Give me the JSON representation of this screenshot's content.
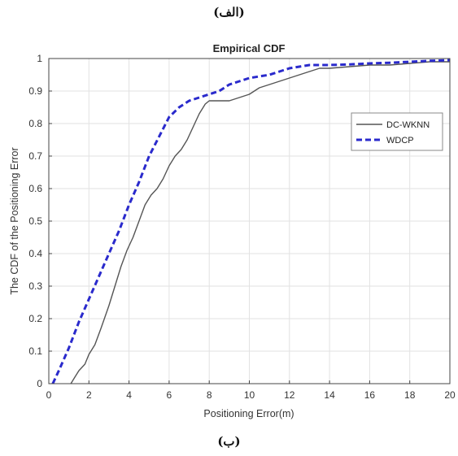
{
  "captions": {
    "top": "(الف)",
    "bottom": "(ب)"
  },
  "chart_data": {
    "type": "line",
    "title": "Empirical CDF",
    "xlabel": "Positioning Error(m)",
    "ylabel": "The CDF of the Positioning Error",
    "xlim": [
      0,
      20
    ],
    "ylim": [
      0,
      1
    ],
    "xticks": [
      0,
      2,
      4,
      6,
      8,
      10,
      12,
      14,
      16,
      18,
      20
    ],
    "yticks": [
      0,
      0.1,
      0.2,
      0.3,
      0.4,
      0.5,
      0.6,
      0.7,
      0.8,
      0.9,
      1
    ],
    "grid": true,
    "legend_position": "top-right",
    "series": [
      {
        "name": "DC-WKNN",
        "color": "#555555",
        "style": "solid",
        "x": [
          1.1,
          1.3,
          1.5,
          1.8,
          2.0,
          2.3,
          2.6,
          3.0,
          3.3,
          3.6,
          3.9,
          4.2,
          4.5,
          4.8,
          5.1,
          5.4,
          5.7,
          6.0,
          6.3,
          6.6,
          6.9,
          7.2,
          7.5,
          7.8,
          8.0,
          8.5,
          9.0,
          9.5,
          10.0,
          10.5,
          11.0,
          11.5,
          12.0,
          12.5,
          13.0,
          13.5,
          14.0,
          15.0,
          16.0,
          17.0,
          18.0,
          19.0,
          20.0
        ],
        "y": [
          0.0,
          0.02,
          0.04,
          0.06,
          0.09,
          0.12,
          0.17,
          0.24,
          0.3,
          0.36,
          0.41,
          0.45,
          0.5,
          0.55,
          0.58,
          0.6,
          0.63,
          0.67,
          0.7,
          0.72,
          0.75,
          0.79,
          0.83,
          0.86,
          0.87,
          0.87,
          0.87,
          0.88,
          0.89,
          0.91,
          0.92,
          0.93,
          0.94,
          0.95,
          0.96,
          0.97,
          0.97,
          0.975,
          0.98,
          0.98,
          0.985,
          0.99,
          0.99
        ]
      },
      {
        "name": "WDCP",
        "color": "#2a2acc",
        "style": "dashed",
        "x": [
          0.2,
          0.5,
          1.0,
          1.5,
          2.0,
          2.5,
          3.0,
          3.5,
          4.0,
          4.5,
          5.0,
          5.5,
          6.0,
          6.5,
          7.0,
          7.5,
          8.0,
          8.5,
          9.0,
          9.5,
          10.0,
          10.5,
          11.0,
          11.5,
          12.0,
          12.5,
          13.0,
          14.0,
          15.0,
          16.0,
          17.0,
          18.0,
          19.0,
          20.0
        ],
        "y": [
          0.0,
          0.04,
          0.11,
          0.19,
          0.26,
          0.33,
          0.4,
          0.47,
          0.55,
          0.62,
          0.7,
          0.76,
          0.82,
          0.85,
          0.87,
          0.88,
          0.89,
          0.9,
          0.92,
          0.93,
          0.94,
          0.945,
          0.95,
          0.96,
          0.97,
          0.975,
          0.98,
          0.98,
          0.982,
          0.985,
          0.987,
          0.99,
          0.993,
          0.995
        ]
      }
    ]
  }
}
